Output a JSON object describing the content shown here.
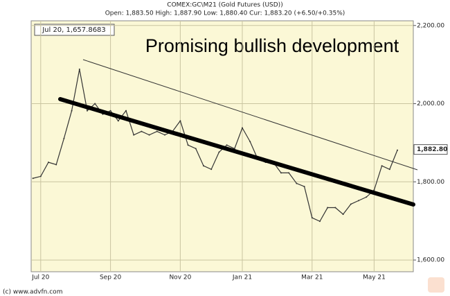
{
  "chart_data": {
    "type": "line",
    "title": "COMEX:GC\\M21 (Gold Futures (USD))",
    "subtitle": "Open: 1,883.50 High: 1,887.90 Low: 1,880.40 Cur: 1,883.20 (+6.50/+0.35%)",
    "readout": "Jul 20, 1,657.8683",
    "annotation": "Promising bullish development",
    "footer": "(c) www.advfn.com",
    "categories": [
      null,
      "Jul 20",
      null,
      null,
      null,
      null,
      null,
      null,
      null,
      null,
      "Sep 20",
      null,
      null,
      null,
      null,
      null,
      null,
      null,
      null,
      "Nov 20",
      null,
      null,
      null,
      null,
      null,
      null,
      null,
      "Jan 21",
      null,
      null,
      null,
      null,
      null,
      null,
      null,
      null,
      "Mar 21",
      null,
      null,
      null,
      null,
      null,
      null,
      null,
      "May 21",
      null,
      null,
      null
    ],
    "series": [
      {
        "name": "Gold Futures",
        "color": "#333333",
        "values": [
          1809,
          1814,
          1850,
          1844,
          1911,
          1982,
          2088,
          1982,
          2000,
          1973,
          1982,
          1956,
          1982,
          1920,
          1929,
          1920,
          1929,
          1920,
          1929,
          1956,
          1894,
          1885,
          1841,
          1832,
          1876,
          1894,
          1885,
          1938,
          1903,
          1858,
          1850,
          1850,
          1823,
          1823,
          1796,
          1788,
          1708,
          1699,
          1734,
          1734,
          1717,
          1743,
          1752,
          1761,
          1779,
          1841,
          1832,
          1881
        ]
      }
    ],
    "last_value": 1882.8,
    "last_label": "1,882.80",
    "ylim": [
      1570,
      2212
    ],
    "yticks": [
      {
        "value": 1600,
        "label": "1,600.00"
      },
      {
        "value": 1800,
        "label": "1,800.00"
      },
      {
        "value": 2000,
        "label": "2,000.00"
      },
      {
        "value": 2200,
        "label": "2,200.00"
      }
    ],
    "grid": true
  }
}
